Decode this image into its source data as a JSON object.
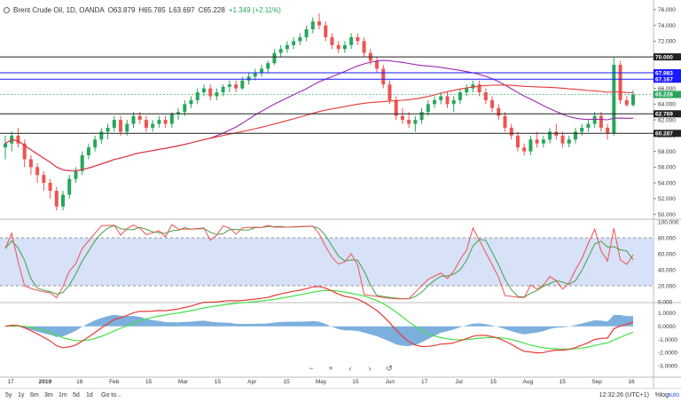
{
  "header": {
    "symbol": "Brent Crude Oil, 1D, OANDA",
    "open": "O63.879",
    "high": "H65.785",
    "low": "L63.697",
    "close": "C65.228",
    "change": "+1.349 (+2.11%)"
  },
  "colors": {
    "up": "#26a65b",
    "down": "#ef5350",
    "ma_red": "#e53935",
    "ma_purple": "#9c27b0",
    "hline_blue": "#1a1aff",
    "stoch_fill": "#cdd9f5",
    "stoch_k": "#ef5350",
    "stoch_d": "#43a047",
    "macd_hist": "#5b9bd5",
    "macd_line": "#e53935",
    "macd_signal": "#43e047"
  },
  "price_axis": {
    "ticks": [
      "76.000",
      "74.000",
      "72.000",
      "70.000",
      "68.000",
      "66.000",
      "64.000",
      "62.000",
      "60.000",
      "58.000",
      "56.000",
      "54.000",
      "52.000",
      "50.000"
    ]
  },
  "price_labels": [
    {
      "value": "70.000",
      "kind": "black"
    },
    {
      "value": "67.983",
      "kind": "blue"
    },
    {
      "value": "67.167",
      "kind": "blue"
    },
    {
      "value": "65.228",
      "kind": "green"
    },
    {
      "value": "62.769",
      "kind": "black"
    },
    {
      "value": "60.287",
      "kind": "black"
    }
  ],
  "stoch_axis": {
    "ticks": [
      "100.000",
      "80.000",
      "60.000",
      "40.000",
      "20.000",
      "0.000"
    ]
  },
  "macd_axis": {
    "ticks": [
      "1.0000",
      "0.0000",
      "-1.0000",
      "-2.0000",
      "-3.0000"
    ]
  },
  "time_axis": {
    "labels": [
      "17",
      "2019",
      "16",
      "Feb",
      "15",
      "Mar",
      "15",
      "Apr",
      "15",
      "May",
      "15",
      "Jun",
      "17",
      "Jul",
      "15",
      "Aug",
      "15",
      "Sep",
      "16"
    ]
  },
  "chart_data": {
    "type": "candlestick",
    "title": "Brent Crude Oil, 1D, OANDA",
    "ohlc_approx": [
      [
        58.5,
        60,
        57,
        59
      ],
      [
        59,
        60.5,
        58,
        60
      ],
      [
        60,
        61,
        58.5,
        59
      ],
      [
        59,
        59.5,
        56,
        57
      ],
      [
        57,
        57.5,
        55,
        56
      ],
      [
        56,
        56.5,
        54,
        55
      ],
      [
        55,
        55.5,
        53,
        54
      ],
      [
        54,
        54.5,
        52,
        53
      ],
      [
        53,
        53.5,
        50.5,
        51
      ],
      [
        51,
        53,
        50.5,
        52.5
      ],
      [
        52.5,
        55,
        52,
        54.5
      ],
      [
        54.5,
        56,
        54,
        55.5
      ],
      [
        55.5,
        58,
        55,
        57.5
      ],
      [
        57.5,
        59,
        57,
        58.5
      ],
      [
        58.5,
        60,
        58,
        59.5
      ],
      [
        59.5,
        61,
        59,
        60.5
      ],
      [
        60.5,
        61.5,
        59.5,
        61
      ],
      [
        61,
        62.5,
        60.5,
        62
      ],
      [
        62,
        62.5,
        60,
        60.5
      ],
      [
        60.5,
        62,
        60,
        61.5
      ],
      [
        61.5,
        63,
        61,
        62.5
      ],
      [
        62.5,
        63,
        61.5,
        62
      ],
      [
        62,
        62.5,
        60.5,
        61
      ],
      [
        61,
        62,
        60.5,
        61.5
      ],
      [
        61.5,
        62.5,
        61,
        62
      ],
      [
        62,
        62.5,
        61,
        61.5
      ],
      [
        61.5,
        63,
        61,
        62.8
      ],
      [
        62.8,
        63.5,
        62,
        63
      ],
      [
        63,
        64.5,
        62.5,
        64
      ],
      [
        64,
        65,
        63.5,
        64.5
      ],
      [
        64.5,
        66,
        64,
        65.5
      ],
      [
        65.5,
        66.5,
        65,
        66
      ],
      [
        66,
        66.5,
        64.5,
        65
      ],
      [
        65,
        66,
        64.5,
        65.5
      ],
      [
        65.5,
        66.5,
        65,
        66.2
      ],
      [
        66.2,
        67,
        65.5,
        66.5
      ],
      [
        66.5,
        67,
        65.5,
        66
      ],
      [
        66,
        67.5,
        65.8,
        67
      ],
      [
        67,
        68,
        66.5,
        67.5
      ],
      [
        67.5,
        68.5,
        67,
        68
      ],
      [
        68,
        69,
        67.5,
        68.5
      ],
      [
        68.5,
        69.5,
        68,
        69.2
      ],
      [
        69.2,
        71,
        69,
        70.5
      ],
      [
        70.5,
        71.5,
        70,
        71
      ],
      [
        71,
        72,
        70.5,
        71.5
      ],
      [
        71.5,
        72.5,
        71,
        72
      ],
      [
        72,
        73,
        71.5,
        72.5
      ],
      [
        72.5,
        74,
        72,
        73.5
      ],
      [
        73.5,
        75,
        73,
        74.5
      ],
      [
        74.5,
        75.5,
        73.5,
        74
      ],
      [
        74,
        74.5,
        72,
        72.5
      ],
      [
        72.5,
        73,
        71,
        71.5
      ],
      [
        71.5,
        72,
        70.5,
        71
      ],
      [
        71,
        72,
        70.5,
        71.5
      ],
      [
        71.5,
        73,
        71,
        72.5
      ],
      [
        72.5,
        73,
        71.5,
        72
      ],
      [
        72,
        72.5,
        70,
        70.5
      ],
      [
        70.5,
        71,
        69,
        69.5
      ],
      [
        69.5,
        70,
        68,
        68.5
      ],
      [
        68.5,
        69,
        66,
        66.5
      ],
      [
        66.5,
        67,
        64,
        64.5
      ],
      [
        64.5,
        65,
        62,
        62.5
      ],
      [
        62.5,
        63.5,
        61.5,
        62
      ],
      [
        62,
        63,
        61,
        61.5
      ],
      [
        61.5,
        62.5,
        60.5,
        62
      ],
      [
        62,
        63.5,
        61.5,
        63
      ],
      [
        63,
        64.5,
        62.5,
        64
      ],
      [
        64,
        65,
        63.5,
        64.5
      ],
      [
        64.5,
        65.5,
        64,
        65
      ],
      [
        65,
        65.5,
        63.5,
        64
      ],
      [
        64,
        65,
        63,
        64.5
      ],
      [
        64.5,
        66,
        64,
        65.5
      ],
      [
        65.5,
        66.5,
        65,
        66
      ],
      [
        66,
        67,
        65.5,
        66.5
      ],
      [
        66.5,
        67,
        65,
        65.5
      ],
      [
        65.5,
        66,
        64,
        64.5
      ],
      [
        64.5,
        65,
        63,
        63.5
      ],
      [
        63.5,
        64,
        62,
        62.5
      ],
      [
        62.5,
        63,
        60.5,
        61
      ],
      [
        61,
        61.5,
        59.5,
        60
      ],
      [
        60,
        60.5,
        58,
        58.5
      ],
      [
        58.5,
        59,
        57.5,
        58
      ],
      [
        58,
        60,
        57.5,
        59.5
      ],
      [
        59.5,
        60.5,
        58.5,
        59
      ],
      [
        59,
        60,
        58.5,
        59.5
      ],
      [
        59.5,
        61,
        59,
        60.5
      ],
      [
        60.5,
        61.5,
        59.5,
        60
      ],
      [
        60,
        60.5,
        58.5,
        59
      ],
      [
        59,
        60,
        58.5,
        59.5
      ],
      [
        59.5,
        61,
        59,
        60.5
      ],
      [
        60.5,
        61.5,
        60,
        61
      ],
      [
        61,
        62,
        60.5,
        61.5
      ],
      [
        61.5,
        63,
        61,
        62.5
      ],
      [
        62.5,
        63,
        60.5,
        61
      ],
      [
        61,
        61.5,
        59.5,
        60.3
      ],
      [
        60.3,
        70,
        60,
        69
      ],
      [
        69,
        69.5,
        64,
        64.5
      ],
      [
        64.5,
        65,
        63.7,
        63.88
      ],
      [
        63.88,
        65.79,
        63.7,
        65.23
      ]
    ],
    "horizontal_levels": [
      70.0,
      67.983,
      67.167,
      62.769,
      60.287
    ],
    "last_price": 65.228,
    "y_range": [
      49.5,
      77
    ],
    "indicators": [
      "Stochastic",
      "MACD"
    ],
    "stoch_range": [
      0,
      100
    ],
    "stoch_bands": [
      20,
      80
    ],
    "macd_range": [
      -3.8,
      1.6
    ]
  },
  "footer": {
    "ranges": [
      "5y",
      "1y",
      "6m",
      "3m",
      "1m",
      "5d",
      "1d",
      "Go to..."
    ],
    "clock": "12:32:26 (UTC+1)",
    "pct": "%",
    "log": "log",
    "auto": "auto"
  },
  "nav": [
    "−",
    "+",
    "‹",
    "›",
    "↺"
  ]
}
